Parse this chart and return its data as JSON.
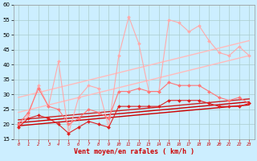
{
  "background_color": "#cceeff",
  "grid_color": "#aacccc",
  "xlabel": "Vent moyen/en rafales ( km/h )",
  "xlim": [
    -0.5,
    23.5
  ],
  "ylim": [
    15,
    60
  ],
  "yticks": [
    15,
    20,
    25,
    30,
    35,
    40,
    45,
    50,
    55,
    60
  ],
  "xticks": [
    0,
    1,
    2,
    3,
    4,
    5,
    6,
    7,
    8,
    9,
    10,
    11,
    12,
    13,
    14,
    15,
    16,
    17,
    18,
    19,
    20,
    21,
    22,
    23
  ],
  "lines": [
    {
      "x": [
        0,
        1,
        2,
        3,
        4,
        5,
        6,
        7,
        8,
        9,
        10,
        11,
        12,
        13,
        14,
        15,
        16,
        17,
        18,
        19,
        20,
        21,
        22,
        23
      ],
      "y": [
        19,
        23,
        33,
        26,
        41,
        17,
        29,
        33,
        32,
        19,
        43,
        56,
        47,
        31,
        31,
        55,
        54,
        51,
        53,
        48,
        44,
        43,
        46,
        43
      ],
      "color": "#ffaaaa",
      "lw": 0.8,
      "marker": "D",
      "ms": 2.0,
      "zorder": 3
    },
    {
      "x": [
        0,
        23
      ],
      "y": [
        29,
        48
      ],
      "color": "#ffbbbb",
      "lw": 1.0,
      "marker": null,
      "ms": 0,
      "zorder": 2
    },
    {
      "x": [
        0,
        23
      ],
      "y": [
        24,
        43
      ],
      "color": "#ffbbbb",
      "lw": 1.0,
      "marker": null,
      "ms": 0,
      "zorder": 2
    },
    {
      "x": [
        0,
        1,
        2,
        3,
        4,
        5,
        6,
        7,
        8,
        9,
        10,
        11,
        12,
        13,
        14,
        15,
        16,
        17,
        18,
        19,
        20,
        21,
        22,
        23
      ],
      "y": [
        20,
        24,
        32,
        26,
        25,
        20,
        22,
        25,
        24,
        22,
        31,
        31,
        32,
        31,
        31,
        34,
        33,
        33,
        33,
        31,
        29,
        28,
        29,
        27
      ],
      "color": "#ff7777",
      "lw": 0.8,
      "marker": "D",
      "ms": 2.0,
      "zorder": 3
    },
    {
      "x": [
        0,
        1,
        2,
        3,
        4,
        5,
        6,
        7,
        8,
        9,
        10,
        11,
        12,
        13,
        14,
        15,
        16,
        17,
        18,
        19,
        20,
        21,
        22,
        23
      ],
      "y": [
        19,
        22,
        23,
        22,
        20,
        17,
        19,
        21,
        20,
        19,
        26,
        26,
        26,
        26,
        26,
        28,
        28,
        28,
        28,
        27,
        26,
        26,
        26,
        27
      ],
      "color": "#dd2222",
      "lw": 0.8,
      "marker": "D",
      "ms": 2.0,
      "zorder": 3
    },
    {
      "x": [
        0,
        23
      ],
      "y": [
        19.5,
        26.5
      ],
      "color": "#cc0000",
      "lw": 1.0,
      "marker": null,
      "ms": 0,
      "zorder": 2
    },
    {
      "x": [
        0,
        23
      ],
      "y": [
        20.5,
        27.5
      ],
      "color": "#cc0000",
      "lw": 1.0,
      "marker": null,
      "ms": 0,
      "zorder": 2
    },
    {
      "x": [
        0,
        23
      ],
      "y": [
        21.5,
        28.5
      ],
      "color": "#cc2222",
      "lw": 1.0,
      "marker": null,
      "ms": 0,
      "zorder": 2
    }
  ]
}
